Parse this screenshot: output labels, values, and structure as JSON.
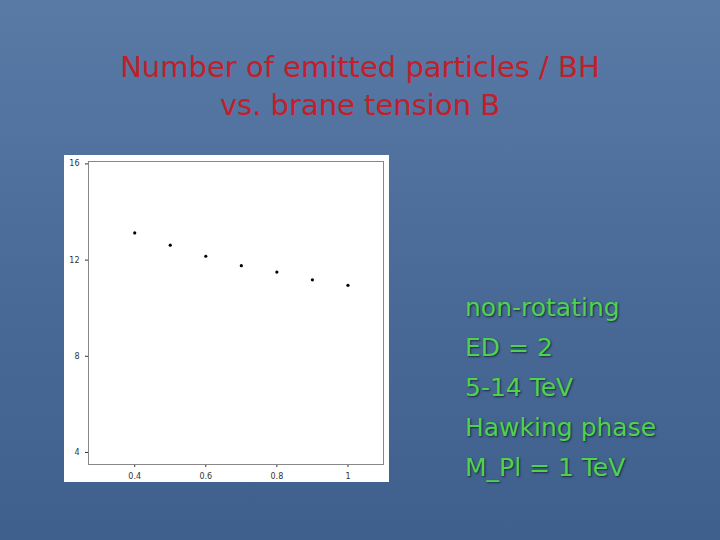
{
  "chart_data": {
    "type": "scatter",
    "title": "Number of emitted particles / BH\nvs. brane tension B",
    "x": [
      0.4,
      0.5,
      0.6,
      0.7,
      0.8,
      0.9,
      1.0
    ],
    "values": [
      13.13,
      12.62,
      12.16,
      11.77,
      11.5,
      11.18,
      10.95
    ],
    "color": "#000000",
    "marker": "dot",
    "xlim": [
      0.27,
      1.1
    ],
    "xticks": [
      0.4,
      0.6,
      0.8,
      1
    ],
    "ylim": [
      3.5,
      16.1
    ],
    "yticks": [
      4,
      8,
      12,
      16
    ],
    "grid": false,
    "annotations": [
      "non-rotating",
      "ED = 2",
      "5-14 TeV",
      "Hawking phase",
      "M_Pl = 1 TeV"
    ]
  }
}
